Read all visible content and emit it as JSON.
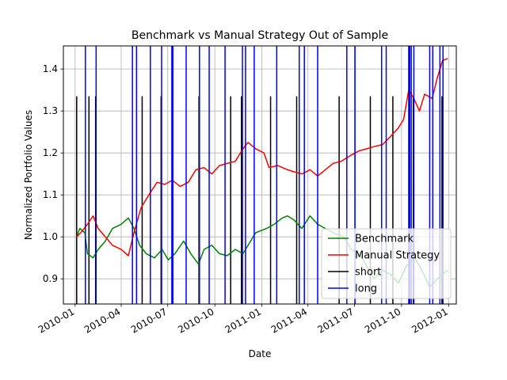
{
  "chart_data": {
    "type": "line",
    "title": "Benchmark vs Manual Strategy Out of Sample",
    "xlabel": "Date",
    "ylabel": "Normalized Portfolio Values",
    "grid": true,
    "legend_position": "lower-right",
    "xlim": [
      "2009-12-09",
      "2012-01-16"
    ],
    "ylim": [
      0.84,
      1.455
    ],
    "x_ticks": [
      "2010-01",
      "2010-04",
      "2010-07",
      "2010-10",
      "2011-01",
      "2011-04",
      "2011-07",
      "2011-10",
      "2012-01"
    ],
    "x_tick_dates": [
      "2010-01-01",
      "2010-04-01",
      "2010-07-01",
      "2010-10-01",
      "2011-01-01",
      "2011-04-01",
      "2011-07-01",
      "2011-10-01",
      "2012-01-01"
    ],
    "y_ticks": [
      "0.9",
      "1.0",
      "1.1",
      "1.2",
      "1.3",
      "1.4"
    ],
    "series": [
      {
        "name": "Benchmark",
        "color": "#008000",
        "points": [
          [
            "2010-01-04",
            1.0
          ],
          [
            "2010-01-10",
            1.02
          ],
          [
            "2010-01-20",
            1.01
          ],
          [
            "2010-01-25",
            0.96
          ],
          [
            "2010-02-05",
            0.95
          ],
          [
            "2010-02-15",
            0.97
          ],
          [
            "2010-03-01",
            0.99
          ],
          [
            "2010-03-15",
            1.02
          ],
          [
            "2010-04-01",
            1.03
          ],
          [
            "2010-04-15",
            1.045
          ],
          [
            "2010-04-26",
            1.02
          ],
          [
            "2010-05-07",
            0.98
          ],
          [
            "2010-05-20",
            0.96
          ],
          [
            "2010-06-05",
            0.95
          ],
          [
            "2010-06-20",
            0.97
          ],
          [
            "2010-07-02",
            0.945
          ],
          [
            "2010-07-15",
            0.96
          ],
          [
            "2010-08-01",
            0.99
          ],
          [
            "2010-08-15",
            0.96
          ],
          [
            "2010-08-30",
            0.935
          ],
          [
            "2010-09-10",
            0.97
          ],
          [
            "2010-09-25",
            0.98
          ],
          [
            "2010-10-10",
            0.96
          ],
          [
            "2010-10-25",
            0.955
          ],
          [
            "2010-11-10",
            0.97
          ],
          [
            "2010-11-25",
            0.96
          ],
          [
            "2010-12-10",
            0.99
          ],
          [
            "2010-12-20",
            1.01
          ],
          [
            "2011-01-10",
            1.02
          ],
          [
            "2011-01-25",
            1.03
          ],
          [
            "2011-02-10",
            1.045
          ],
          [
            "2011-02-20",
            1.05
          ],
          [
            "2011-03-05",
            1.04
          ],
          [
            "2011-03-20",
            1.02
          ],
          [
            "2011-04-05",
            1.05
          ],
          [
            "2011-04-20",
            1.03
          ],
          [
            "2011-05-05",
            1.02
          ],
          [
            "2011-05-20",
            1.01
          ],
          [
            "2011-06-10",
            1.0
          ],
          [
            "2011-06-25",
            0.97
          ],
          [
            "2011-07-10",
            0.96
          ],
          [
            "2011-07-25",
            0.93
          ],
          [
            "2011-08-08",
            0.9
          ],
          [
            "2011-08-25",
            0.92
          ],
          [
            "2011-09-10",
            0.91
          ],
          [
            "2011-09-25",
            0.89
          ],
          [
            "2011-10-10",
            0.93
          ],
          [
            "2011-10-27",
            0.95
          ],
          [
            "2011-11-10",
            0.92
          ],
          [
            "2011-11-25",
            0.88
          ],
          [
            "2011-12-10",
            0.9
          ],
          [
            "2011-12-30",
            0.92
          ]
        ]
      },
      {
        "name": "Manual Strategy",
        "color": "#ff0000",
        "points": [
          [
            "2010-01-04",
            1.0
          ],
          [
            "2010-01-12",
            1.01
          ],
          [
            "2010-01-25",
            1.03
          ],
          [
            "2010-02-05",
            1.05
          ],
          [
            "2010-02-15",
            1.02
          ],
          [
            "2010-03-01",
            1.0
          ],
          [
            "2010-03-15",
            0.98
          ],
          [
            "2010-04-01",
            0.97
          ],
          [
            "2010-04-15",
            0.955
          ],
          [
            "2010-04-26",
            1.01
          ],
          [
            "2010-05-10",
            1.07
          ],
          [
            "2010-05-25",
            1.1
          ],
          [
            "2010-06-10",
            1.13
          ],
          [
            "2010-06-25",
            1.125
          ],
          [
            "2010-07-10",
            1.135
          ],
          [
            "2010-07-25",
            1.12
          ],
          [
            "2010-08-10",
            1.13
          ],
          [
            "2010-08-25",
            1.16
          ],
          [
            "2010-09-10",
            1.165
          ],
          [
            "2010-09-25",
            1.15
          ],
          [
            "2010-10-10",
            1.17
          ],
          [
            "2010-10-25",
            1.175
          ],
          [
            "2010-11-10",
            1.18
          ],
          [
            "2010-11-25",
            1.21
          ],
          [
            "2010-12-05",
            1.225
          ],
          [
            "2010-12-20",
            1.21
          ],
          [
            "2011-01-05",
            1.2
          ],
          [
            "2011-01-15",
            1.165
          ],
          [
            "2011-02-01",
            1.17
          ],
          [
            "2011-02-20",
            1.16
          ],
          [
            "2011-03-05",
            1.155
          ],
          [
            "2011-03-20",
            1.15
          ],
          [
            "2011-04-05",
            1.16
          ],
          [
            "2011-04-20",
            1.145
          ],
          [
            "2011-05-05",
            1.16
          ],
          [
            "2011-05-20",
            1.175
          ],
          [
            "2011-06-05",
            1.18
          ],
          [
            "2011-06-25",
            1.195
          ],
          [
            "2011-07-10",
            1.205
          ],
          [
            "2011-07-25",
            1.21
          ],
          [
            "2011-08-08",
            1.215
          ],
          [
            "2011-08-25",
            1.22
          ],
          [
            "2011-09-10",
            1.24
          ],
          [
            "2011-09-25",
            1.26
          ],
          [
            "2011-10-05",
            1.28
          ],
          [
            "2011-10-15",
            1.35
          ],
          [
            "2011-10-25",
            1.33
          ],
          [
            "2011-11-05",
            1.3
          ],
          [
            "2011-11-15",
            1.34
          ],
          [
            "2011-11-30",
            1.33
          ],
          [
            "2011-12-10",
            1.38
          ],
          [
            "2011-12-20",
            1.42
          ],
          [
            "2011-12-30",
            1.425
          ]
        ]
      }
    ],
    "short_dates": [
      "2010-01-04",
      "2010-01-28",
      "2010-02-10",
      "2010-05-12",
      "2010-06-18",
      "2010-08-31",
      "2010-11-01",
      "2010-11-22",
      "2011-01-18",
      "2011-03-10",
      "2011-06-01",
      "2011-08-01",
      "2011-09-14",
      "2011-10-17",
      "2011-10-24",
      "2011-12-19"
    ],
    "long_dates": [
      "2010-01-21",
      "2010-02-11",
      "2010-04-23",
      "2010-05-01",
      "2010-05-28",
      "2010-06-19",
      "2010-07-09",
      "2010-07-11",
      "2010-08-06",
      "2010-09-01",
      "2010-09-20",
      "2010-10-21",
      "2010-11-24",
      "2010-11-30",
      "2010-12-17",
      "2011-01-30",
      "2011-03-15",
      "2011-03-25",
      "2011-04-20",
      "2011-06-16",
      "2011-07-02",
      "2011-08-23",
      "2011-09-01",
      "2011-10-15",
      "2011-10-17",
      "2011-10-20",
      "2011-10-25",
      "2011-11-25",
      "2011-12-01",
      "2011-12-15",
      "2011-12-21"
    ],
    "legend": [
      {
        "label": "Benchmark",
        "color": "#008000"
      },
      {
        "label": "Manual Strategy",
        "color": "#ff0000"
      },
      {
        "label": "short",
        "color": "#000000"
      },
      {
        "label": "long",
        "color": "#0000ff"
      }
    ]
  }
}
